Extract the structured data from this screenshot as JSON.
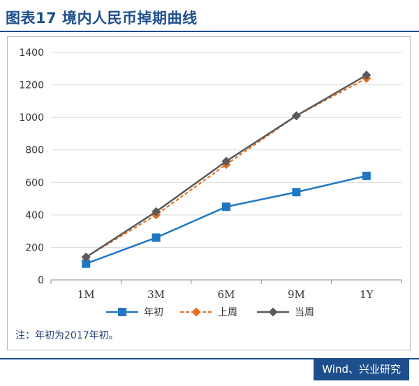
{
  "figure": {
    "title": "图表17  境内人民币掉期曲线",
    "note": "注：年初为2017年初。",
    "source": "Wind、兴业研究"
  },
  "colors": {
    "brand": "#1d4f8c",
    "series_start_of_year": "#1f77c4",
    "series_last_week": "#e46c1e",
    "series_current_week": "#595959"
  },
  "chart_data": {
    "type": "line",
    "categories": [
      "1M",
      "3M",
      "6M",
      "9M",
      "1Y"
    ],
    "ylim": [
      0,
      1400
    ],
    "yticks": [
      0,
      200,
      400,
      600,
      800,
      1000,
      1200,
      1400
    ],
    "grid": true,
    "legend_position": "bottom",
    "series": [
      {
        "name": "年初",
        "values": [
          100,
          260,
          450,
          540,
          640
        ],
        "color": "#1f77c4",
        "marker": "square",
        "dash": "solid"
      },
      {
        "name": "上周",
        "values": [
          140,
          400,
          710,
          1010,
          1240
        ],
        "color": "#e46c1e",
        "marker": "diamond",
        "dash": "dashed"
      },
      {
        "name": "当周",
        "values": [
          140,
          420,
          730,
          1010,
          1260
        ],
        "color": "#595959",
        "marker": "diamond",
        "dash": "solid"
      }
    ]
  }
}
